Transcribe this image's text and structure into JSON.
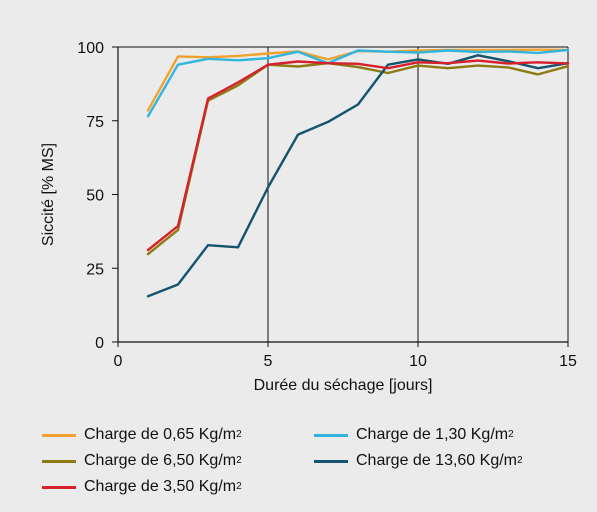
{
  "chart_data": {
    "type": "line",
    "title": "",
    "xlabel": "Durée du séchage [jours]",
    "ylabel": "Siccité [% MS]",
    "xlim": [
      0,
      15
    ],
    "ylim": [
      0,
      100
    ],
    "xticks": [
      "0",
      "5",
      "10",
      "15"
    ],
    "yticks": [
      "0",
      "25",
      "50",
      "75",
      "100"
    ],
    "grid": "vertical lines at x = 5, 10, 15; horizontal line at y = 100",
    "legend_position": "bottom",
    "series": [
      {
        "name": "Charge de 0,65 Kg/m",
        "unit_sup": "2",
        "color": "#f3a12e",
        "x": [
          1,
          2,
          3,
          4,
          5,
          6,
          7,
          8,
          9,
          10,
          11,
          12,
          13,
          14,
          15
        ],
        "y": [
          78.5,
          96.8,
          96.5,
          97,
          97.8,
          98.5,
          95.8,
          98.6,
          98.4,
          98.8,
          99,
          99,
          99,
          99.1,
          99
        ]
      },
      {
        "name": "Charge de 1,30 Kg/m",
        "unit_sup": "2",
        "color": "#2fb5de",
        "x": [
          1,
          2,
          3,
          4,
          5,
          6,
          7,
          8,
          9,
          10,
          11,
          12,
          13,
          14,
          15
        ],
        "y": [
          76.5,
          94,
          96,
          95.5,
          96.2,
          98.4,
          94.5,
          98.8,
          98.4,
          98.1,
          98.8,
          98.3,
          98.5,
          98,
          99
        ]
      },
      {
        "name": "Charge de 6,50 Kg/m",
        "unit_sup": "2",
        "color": "#8c7a12",
        "x": [
          1,
          2,
          3,
          4,
          5,
          6,
          7,
          8,
          9,
          10,
          11,
          12,
          13,
          14,
          15
        ],
        "y": [
          29.8,
          38,
          81.8,
          87,
          94,
          93.4,
          94.5,
          93.2,
          91.2,
          93.7,
          92.8,
          93.7,
          93.1,
          90.7,
          93.5
        ]
      },
      {
        "name": "Charge de 13,60 Kg/m",
        "unit_sup": "2",
        "color": "#14546f",
        "x": [
          1,
          2,
          3,
          4,
          5,
          6,
          7,
          8,
          9,
          10,
          11,
          12,
          13,
          14,
          15
        ],
        "y": [
          15.5,
          19.5,
          32.8,
          32.1,
          52.4,
          70.3,
          74.6,
          80.5,
          94,
          95.8,
          94.3,
          97.2,
          95.2,
          92.8,
          94.5
        ]
      },
      {
        "name": "Charge de 3,50 Kg/m",
        "unit_sup": "2",
        "color": "#d6202c",
        "x": [
          1,
          2,
          3,
          4,
          5,
          6,
          7,
          8,
          9,
          10,
          11,
          12,
          13,
          14,
          15
        ],
        "y": [
          31.2,
          39.3,
          82.5,
          88,
          94,
          95.1,
          94.5,
          94.3,
          92.8,
          94.8,
          94.5,
          95.4,
          94.4,
          94.8,
          94.4
        ]
      }
    ]
  }
}
